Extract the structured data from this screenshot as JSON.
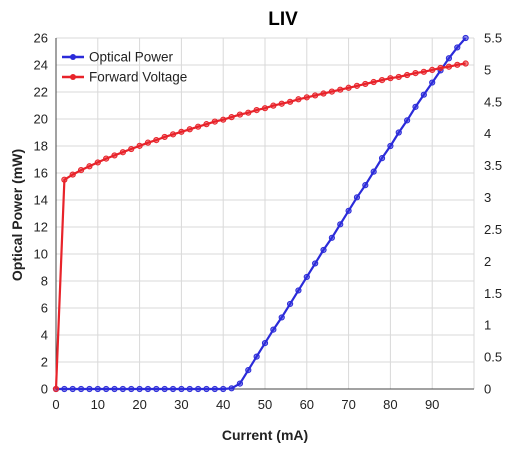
{
  "chart_data": {
    "type": "line",
    "title": "LIV",
    "xlabel": "Current (mA)",
    "ylabel": "Optical Power (mW)",
    "y2label": "",
    "xlim": [
      0,
      100
    ],
    "ylim": [
      0,
      26
    ],
    "y2lim": [
      0,
      5.5
    ],
    "x_ticks": [
      0,
      10,
      20,
      30,
      40,
      50,
      60,
      70,
      80,
      90
    ],
    "y_ticks": [
      0,
      2,
      4,
      6,
      8,
      10,
      12,
      14,
      16,
      18,
      20,
      22,
      24,
      26
    ],
    "y2_ticks": [
      0,
      0.5,
      1,
      1.5,
      2,
      2.5,
      3,
      3.5,
      4,
      4.5,
      5,
      5.5
    ],
    "y2_tick_labels": [
      "0",
      "0.5",
      "1",
      "1.5",
      "2",
      "2.5",
      "3",
      "3.5",
      "4",
      "4.5",
      "5",
      "5.5"
    ],
    "grid": true,
    "legend_position": "top-left",
    "series": [
      {
        "name": "Optical Power",
        "axis": "left",
        "color": "#2b2bd9",
        "x": [
          0,
          2,
          4,
          6,
          8,
          10,
          12,
          14,
          16,
          18,
          20,
          22,
          24,
          26,
          28,
          30,
          32,
          34,
          36,
          38,
          40,
          42,
          44,
          46,
          48,
          50,
          52,
          54,
          56,
          58,
          60,
          62,
          64,
          66,
          68,
          70,
          72,
          74,
          76,
          78,
          80,
          82,
          84,
          86,
          88,
          90,
          92,
          94,
          96,
          98
        ],
        "y": [
          0,
          0,
          0,
          0,
          0,
          0,
          0,
          0,
          0,
          0,
          0,
          0,
          0,
          0,
          0,
          0,
          0,
          0,
          0,
          0,
          0,
          0.05,
          0.4,
          1.4,
          2.4,
          3.4,
          4.4,
          5.3,
          6.3,
          7.3,
          8.3,
          9.3,
          10.3,
          11.2,
          12.2,
          13.2,
          14.2,
          15.1,
          16.1,
          17.1,
          18.0,
          19.0,
          19.9,
          20.9,
          21.8,
          22.7,
          23.6,
          24.5,
          25.3,
          26.0
        ]
      },
      {
        "name": "Forward Voltage",
        "axis": "right",
        "color": "#e8232a",
        "x": [
          0,
          2,
          4,
          6,
          8,
          10,
          12,
          14,
          16,
          18,
          20,
          22,
          24,
          26,
          28,
          30,
          32,
          34,
          36,
          38,
          40,
          42,
          44,
          46,
          48,
          50,
          52,
          54,
          56,
          58,
          60,
          62,
          64,
          66,
          68,
          70,
          72,
          74,
          76,
          78,
          80,
          82,
          84,
          86,
          88,
          90,
          92,
          94,
          96,
          98
        ],
        "y": [
          0,
          3.28,
          3.36,
          3.43,
          3.49,
          3.55,
          3.61,
          3.66,
          3.71,
          3.76,
          3.81,
          3.86,
          3.9,
          3.95,
          3.99,
          4.03,
          4.07,
          4.11,
          4.15,
          4.19,
          4.22,
          4.26,
          4.3,
          4.33,
          4.37,
          4.4,
          4.44,
          4.47,
          4.5,
          4.54,
          4.57,
          4.6,
          4.63,
          4.66,
          4.69,
          4.72,
          4.75,
          4.78,
          4.81,
          4.84,
          4.87,
          4.89,
          4.92,
          4.95,
          4.97,
          5.0,
          5.03,
          5.05,
          5.08,
          5.1
        ]
      }
    ]
  }
}
